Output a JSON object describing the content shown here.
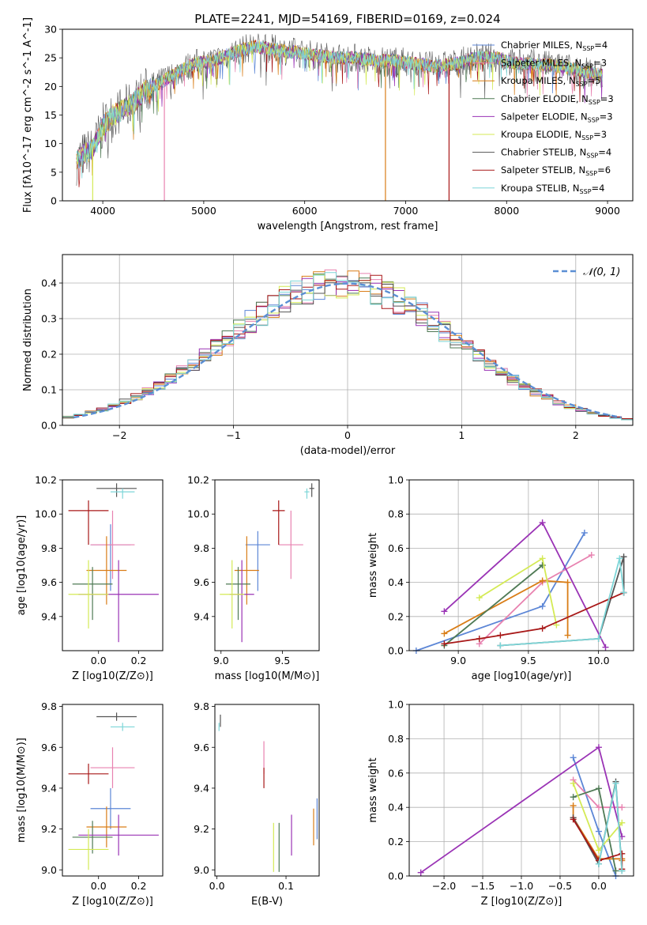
{
  "figure_title": "PLATE=2241, MJD=54169, FIBERID=0169, z=0.024",
  "models": [
    {
      "name": "Chabrier MILES",
      "n": "4",
      "color": "#5c86d6"
    },
    {
      "name": "Salpeter MILES",
      "n": "3",
      "color": "#e882b0"
    },
    {
      "name": "Kroupa MILES",
      "n": "5",
      "color": "#d97d17"
    },
    {
      "name": "Chabrier ELODIE",
      "n": "3",
      "color": "#4f7a55"
    },
    {
      "name": "Salpeter ELODIE",
      "n": "3",
      "color": "#9a33b5"
    },
    {
      "name": "Kroupa ELODIE",
      "n": "3",
      "color": "#d4ea55"
    },
    {
      "name": "Chabrier STELIB",
      "n": "4",
      "color": "#555555"
    },
    {
      "name": "Salpeter STELIB",
      "n": "6",
      "color": "#a81818"
    },
    {
      "name": "Kroupa STELIB",
      "n": "4",
      "color": "#7dd6d8"
    }
  ],
  "chart_data": [
    {
      "id": "spectrum",
      "type": "line",
      "xlabel": "wavelength [Angstrom, rest frame]",
      "ylabel": "Flux [fλ10^-17 erg cm^-2 s^-1 A^-1]",
      "xlim": [
        3600,
        9250
      ],
      "ylim": [
        0,
        30
      ],
      "xticks": [
        4000,
        5000,
        6000,
        7000,
        8000,
        9000
      ],
      "yticks": [
        0,
        5,
        10,
        15,
        20,
        25,
        30
      ],
      "grid": false,
      "legend": "right",
      "continuum_x": [
        3700,
        3800,
        3900,
        4000,
        4100,
        4200,
        4300,
        4400,
        4500,
        4700,
        4900,
        5100,
        5300,
        5500,
        5700,
        5900,
        6100,
        6300,
        6500,
        6700,
        6900,
        7100,
        7300,
        7500,
        7700,
        7900,
        8100,
        8300,
        8500,
        8700,
        8900
      ],
      "continuum_y": [
        6,
        8,
        9,
        13,
        15,
        16,
        17,
        19,
        20,
        22,
        24,
        24.5,
        26,
        27,
        26.5,
        26,
        25.5,
        25,
        25,
        24.5,
        24.5,
        24,
        23.5,
        24,
        25,
        25,
        24,
        24,
        23.5,
        23,
        22
      ],
      "dropouts": [
        {
          "x": 4610,
          "model": 1
        },
        {
          "x": 6800,
          "model": 2
        },
        {
          "x": 7430,
          "model": 7
        },
        {
          "x": 3900,
          "model": 5
        }
      ]
    },
    {
      "id": "residual-histogram",
      "type": "step",
      "xlabel": "(data-model)/error",
      "ylabel": "Normed distribution",
      "xlim": [
        -2.5,
        2.5
      ],
      "ylim": [
        0,
        0.48
      ],
      "xticks": [
        -2,
        -1,
        0,
        1,
        2
      ],
      "yticks": [
        0,
        0.1,
        0.2,
        0.3,
        0.4
      ],
      "grid": true,
      "legend": "top-right",
      "legend_label": "𝒩(0, 1)"
    },
    {
      "id": "age-vs-Z",
      "type": "errorbar",
      "xlabel": "Z [log10(Z/Z⊙)]",
      "ylabel": "age  [log10(age/yr)]",
      "xlim": [
        -0.18,
        0.32
      ],
      "ylim": [
        9.2,
        10.2
      ],
      "xticks": [
        0.0,
        0.2
      ],
      "yticks": [
        9.4,
        9.6,
        9.8,
        10.0,
        10.2
      ],
      "points": [
        {
          "model": 0,
          "x": 0.06,
          "y": 9.82,
          "ex": [
            0.1,
            0.1
          ],
          "ey": [
            0.27,
            0.12
          ]
        },
        {
          "model": 1,
          "x": 0.07,
          "y": 9.82,
          "ex": [
            0.11,
            0.11
          ],
          "ey": [
            0.2,
            0.2
          ]
        },
        {
          "model": 2,
          "x": 0.04,
          "y": 9.67,
          "ex": [
            0.1,
            0.1
          ],
          "ey": [
            0.2,
            0.2
          ]
        },
        {
          "model": 3,
          "x": -0.03,
          "y": 9.59,
          "ex": [
            0.1,
            0.1
          ],
          "ey": [
            0.21,
            0.1
          ]
        },
        {
          "model": 4,
          "x": 0.1,
          "y": 9.53,
          "ex": [
            0.2,
            0.2
          ],
          "ey": [
            0.28,
            0.2
          ]
        },
        {
          "model": 5,
          "x": -0.05,
          "y": 9.53,
          "ex": [
            0.1,
            0.1
          ],
          "ey": [
            0.2,
            0.2
          ]
        },
        {
          "model": 6,
          "x": 0.09,
          "y": 10.15,
          "ex": [
            0.1,
            0.1
          ],
          "ey": [
            0.05,
            0.03
          ]
        },
        {
          "model": 7,
          "x": -0.05,
          "y": 10.02,
          "ex": [
            0.1,
            0.1
          ],
          "ey": [
            0.2,
            0.06
          ]
        },
        {
          "model": 8,
          "x": 0.12,
          "y": 10.13,
          "ex": [
            0.06,
            0.06
          ],
          "ey": [
            0.04,
            0.02
          ]
        }
      ]
    },
    {
      "id": "age-vs-mass",
      "type": "errorbar",
      "xlabel": "mass [log10(M/M⊙)]",
      "ylabel": "",
      "xlim": [
        8.95,
        9.8
      ],
      "ylim": [
        9.2,
        10.2
      ],
      "xticks": [
        9.0,
        9.5
      ],
      "yticks": [
        9.4,
        9.6,
        9.8,
        10.0,
        10.2
      ],
      "points": [
        {
          "model": 0,
          "x": 9.3,
          "y": 9.82,
          "ex": [
            0.1,
            0.1
          ],
          "ey": [
            0.27,
            0.08
          ]
        },
        {
          "model": 1,
          "x": 9.57,
          "y": 9.82,
          "ex": [
            0.1,
            0.1
          ],
          "ey": [
            0.2,
            0.2
          ]
        },
        {
          "model": 2,
          "x": 9.21,
          "y": 9.67,
          "ex": [
            0.1,
            0.1
          ],
          "ey": [
            0.2,
            0.2
          ]
        },
        {
          "model": 3,
          "x": 9.14,
          "y": 9.59,
          "ex": [
            0.1,
            0.1
          ],
          "ey": [
            0.21,
            0.1
          ]
        },
        {
          "model": 4,
          "x": 9.17,
          "y": 9.53,
          "ex": [
            0.1,
            0.1
          ],
          "ey": [
            0.28,
            0.2
          ]
        },
        {
          "model": 5,
          "x": 9.09,
          "y": 9.53,
          "ex": [
            0.1,
            0.1
          ],
          "ey": [
            0.2,
            0.2
          ]
        },
        {
          "model": 6,
          "x": 9.74,
          "y": 10.15,
          "ex": [
            0.02,
            0.02
          ],
          "ey": [
            0.05,
            0.03
          ]
        },
        {
          "model": 7,
          "x": 9.47,
          "y": 10.02,
          "ex": [
            0.05,
            0.05
          ],
          "ey": [
            0.2,
            0.06
          ]
        },
        {
          "model": 8,
          "x": 9.7,
          "y": 10.13,
          "ex": [
            0.02,
            0.02
          ],
          "ey": [
            0.04,
            0.02
          ]
        }
      ]
    },
    {
      "id": "mass-weight-vs-age",
      "type": "line",
      "xlabel": "age  [log10(age/yr)]",
      "ylabel": "mass weight",
      "xlim": [
        8.65,
        10.25
      ],
      "ylim": [
        0,
        1.0
      ],
      "xticks": [
        9.0,
        9.5,
        10.0
      ],
      "yticks": [
        0.0,
        0.2,
        0.4,
        0.6,
        0.8,
        1.0
      ],
      "grid": true,
      "series": [
        {
          "model": 0,
          "x": [
            8.7,
            9.6,
            9.9
          ],
          "y": [
            0.0,
            0.26,
            0.69
          ]
        },
        {
          "model": 1,
          "x": [
            9.15,
            9.6,
            9.95
          ],
          "y": [
            0.04,
            0.4,
            0.56
          ]
        },
        {
          "model": 2,
          "x": [
            8.9,
            9.6,
            9.78,
            9.78
          ],
          "y": [
            0.1,
            0.41,
            0.4,
            0.09
          ]
        },
        {
          "model": 3,
          "x": [
            8.9,
            9.6,
            9.6
          ],
          "y": [
            0.03,
            0.5,
            0.5
          ]
        },
        {
          "model": 4,
          "x": [
            8.9,
            9.6,
            10.05
          ],
          "y": [
            0.23,
            0.75,
            0.02
          ]
        },
        {
          "model": 5,
          "x": [
            9.15,
            9.6,
            9.7
          ],
          "y": [
            0.31,
            0.54,
            0.15
          ]
        },
        {
          "model": 6,
          "x": [
            9.3,
            10.0,
            10.18,
            10.18
          ],
          "y": [
            0.03,
            0.07,
            0.55,
            0.34
          ]
        },
        {
          "model": 7,
          "x": [
            8.9,
            9.15,
            9.3,
            9.6,
            10.18
          ],
          "y": [
            0.04,
            0.07,
            0.09,
            0.13,
            0.34
          ]
        },
        {
          "model": 8,
          "x": [
            9.3,
            10.0,
            10.15,
            10.18
          ],
          "y": [
            0.03,
            0.07,
            0.54,
            0.34
          ]
        }
      ]
    },
    {
      "id": "mass-vs-Z",
      "type": "errorbar",
      "xlabel": "Z [log10(Z/Z⊙)]",
      "ylabel": "mass [log10(M/M⊙)]",
      "xlim": [
        -0.18,
        0.32
      ],
      "ylim": [
        8.97,
        9.81
      ],
      "xticks": [
        0.0,
        0.2
      ],
      "yticks": [
        9.0,
        9.2,
        9.4,
        9.6,
        9.8
      ],
      "points": [
        {
          "model": 0,
          "x": 0.06,
          "y": 9.3,
          "ex": [
            0.1,
            0.1
          ],
          "ey": [
            0.1,
            0.1
          ]
        },
        {
          "model": 1,
          "x": 0.07,
          "y": 9.5,
          "ex": [
            0.11,
            0.11
          ],
          "ey": [
            0.1,
            0.1
          ]
        },
        {
          "model": 2,
          "x": 0.04,
          "y": 9.21,
          "ex": [
            0.1,
            0.1
          ],
          "ey": [
            0.1,
            0.1
          ]
        },
        {
          "model": 3,
          "x": -0.03,
          "y": 9.16,
          "ex": [
            0.1,
            0.1
          ],
          "ey": [
            0.08,
            0.08
          ]
        },
        {
          "model": 4,
          "x": 0.1,
          "y": 9.17,
          "ex": [
            0.2,
            0.2
          ],
          "ey": [
            0.1,
            0.1
          ]
        },
        {
          "model": 5,
          "x": -0.05,
          "y": 9.1,
          "ex": [
            0.1,
            0.1
          ],
          "ey": [
            0.1,
            0.1
          ]
        },
        {
          "model": 6,
          "x": 0.09,
          "y": 9.75,
          "ex": [
            0.1,
            0.1
          ],
          "ey": [
            0.02,
            0.02
          ]
        },
        {
          "model": 7,
          "x": -0.05,
          "y": 9.47,
          "ex": [
            0.1,
            0.1
          ],
          "ey": [
            0.05,
            0.05
          ]
        },
        {
          "model": 8,
          "x": 0.12,
          "y": 9.7,
          "ex": [
            0.06,
            0.06
          ],
          "ey": [
            0.02,
            0.02
          ]
        }
      ]
    },
    {
      "id": "mass-vs-EBV",
      "type": "errorbar",
      "xlabel": "E(B-V)",
      "ylabel": "",
      "xlim": [
        -0.003,
        0.148
      ],
      "ylim": [
        8.97,
        9.81
      ],
      "xticks": [
        0.0,
        0.1
      ],
      "yticks": [
        9.0,
        9.2,
        9.4,
        9.6,
        9.8
      ],
      "points": [
        {
          "model": 0,
          "x": 0.145,
          "y": 9.25,
          "ex": [
            0,
            0
          ],
          "ey": [
            0.1,
            0.1
          ]
        },
        {
          "model": 1,
          "x": 0.068,
          "y": 9.55,
          "ex": [
            0,
            0
          ],
          "ey": [
            0.08,
            0.08
          ]
        },
        {
          "model": 2,
          "x": 0.14,
          "y": 9.21,
          "ex": [
            0,
            0
          ],
          "ey": [
            0.09,
            0.09
          ]
        },
        {
          "model": 3,
          "x": 0.09,
          "y": 9.11,
          "ex": [
            0,
            0
          ],
          "ey": [
            0.12,
            0.12
          ]
        },
        {
          "model": 4,
          "x": 0.108,
          "y": 9.17,
          "ex": [
            0,
            0
          ],
          "ey": [
            0.1,
            0.1
          ]
        },
        {
          "model": 5,
          "x": 0.082,
          "y": 9.11,
          "ex": [
            0,
            0
          ],
          "ey": [
            0.12,
            0.12
          ]
        },
        {
          "model": 6,
          "x": 0.005,
          "y": 9.73,
          "ex": [
            0,
            0
          ],
          "ey": [
            0.03,
            0.03
          ]
        },
        {
          "model": 7,
          "x": 0.068,
          "y": 9.45,
          "ex": [
            0,
            0
          ],
          "ey": [
            0.05,
            0.05
          ]
        },
        {
          "model": 8,
          "x": 0.003,
          "y": 9.7,
          "ex": [
            0,
            0
          ],
          "ey": [
            0.02,
            0.02
          ]
        }
      ]
    },
    {
      "id": "mass-weight-vs-Z",
      "type": "line",
      "xlabel": "Z [log10(Z/Z⊙)]",
      "ylabel": "mass weight",
      "xlim": [
        -2.45,
        0.45
      ],
      "ylim": [
        0,
        1.0
      ],
      "xticks": [
        -2.0,
        -1.5,
        -1.0,
        -0.5,
        0.0
      ],
      "yticks": [
        0.0,
        0.2,
        0.4,
        0.6,
        0.8,
        1.0
      ],
      "grid": true,
      "series": [
        {
          "model": 0,
          "x": [
            -0.33,
            0.0,
            0.22
          ],
          "y": [
            0.69,
            0.26,
            0.0
          ]
        },
        {
          "model": 1,
          "x": [
            -0.33,
            0.0,
            0.3
          ],
          "y": [
            0.56,
            0.4,
            0.4
          ]
        },
        {
          "model": 2,
          "x": [
            -0.33,
            -0.33,
            0.0,
            0.3,
            0.3
          ],
          "y": [
            0.41,
            0.34,
            0.1,
            0.1,
            0.09
          ]
        },
        {
          "model": 3,
          "x": [
            -0.33,
            0.0,
            0.22
          ],
          "y": [
            0.46,
            0.51,
            0.03
          ]
        },
        {
          "model": 4,
          "x": [
            -2.3,
            0.0,
            0.3
          ],
          "y": [
            0.02,
            0.75,
            0.23
          ]
        },
        {
          "model": 5,
          "x": [
            -0.33,
            0.0,
            0.3
          ],
          "y": [
            0.54,
            0.15,
            0.31
          ]
        },
        {
          "model": 6,
          "x": [
            -0.33,
            0.0,
            0.22,
            0.3
          ],
          "y": [
            0.34,
            0.07,
            0.55,
            0.03
          ]
        },
        {
          "model": 7,
          "x": [
            -0.33,
            0.0,
            0.3,
            0.3
          ],
          "y": [
            0.33,
            0.09,
            0.13,
            0.04
          ]
        },
        {
          "model": 8,
          "x": [
            0.0,
            0.22,
            0.3
          ],
          "y": [
            0.07,
            0.54,
            0.03
          ]
        }
      ]
    }
  ]
}
